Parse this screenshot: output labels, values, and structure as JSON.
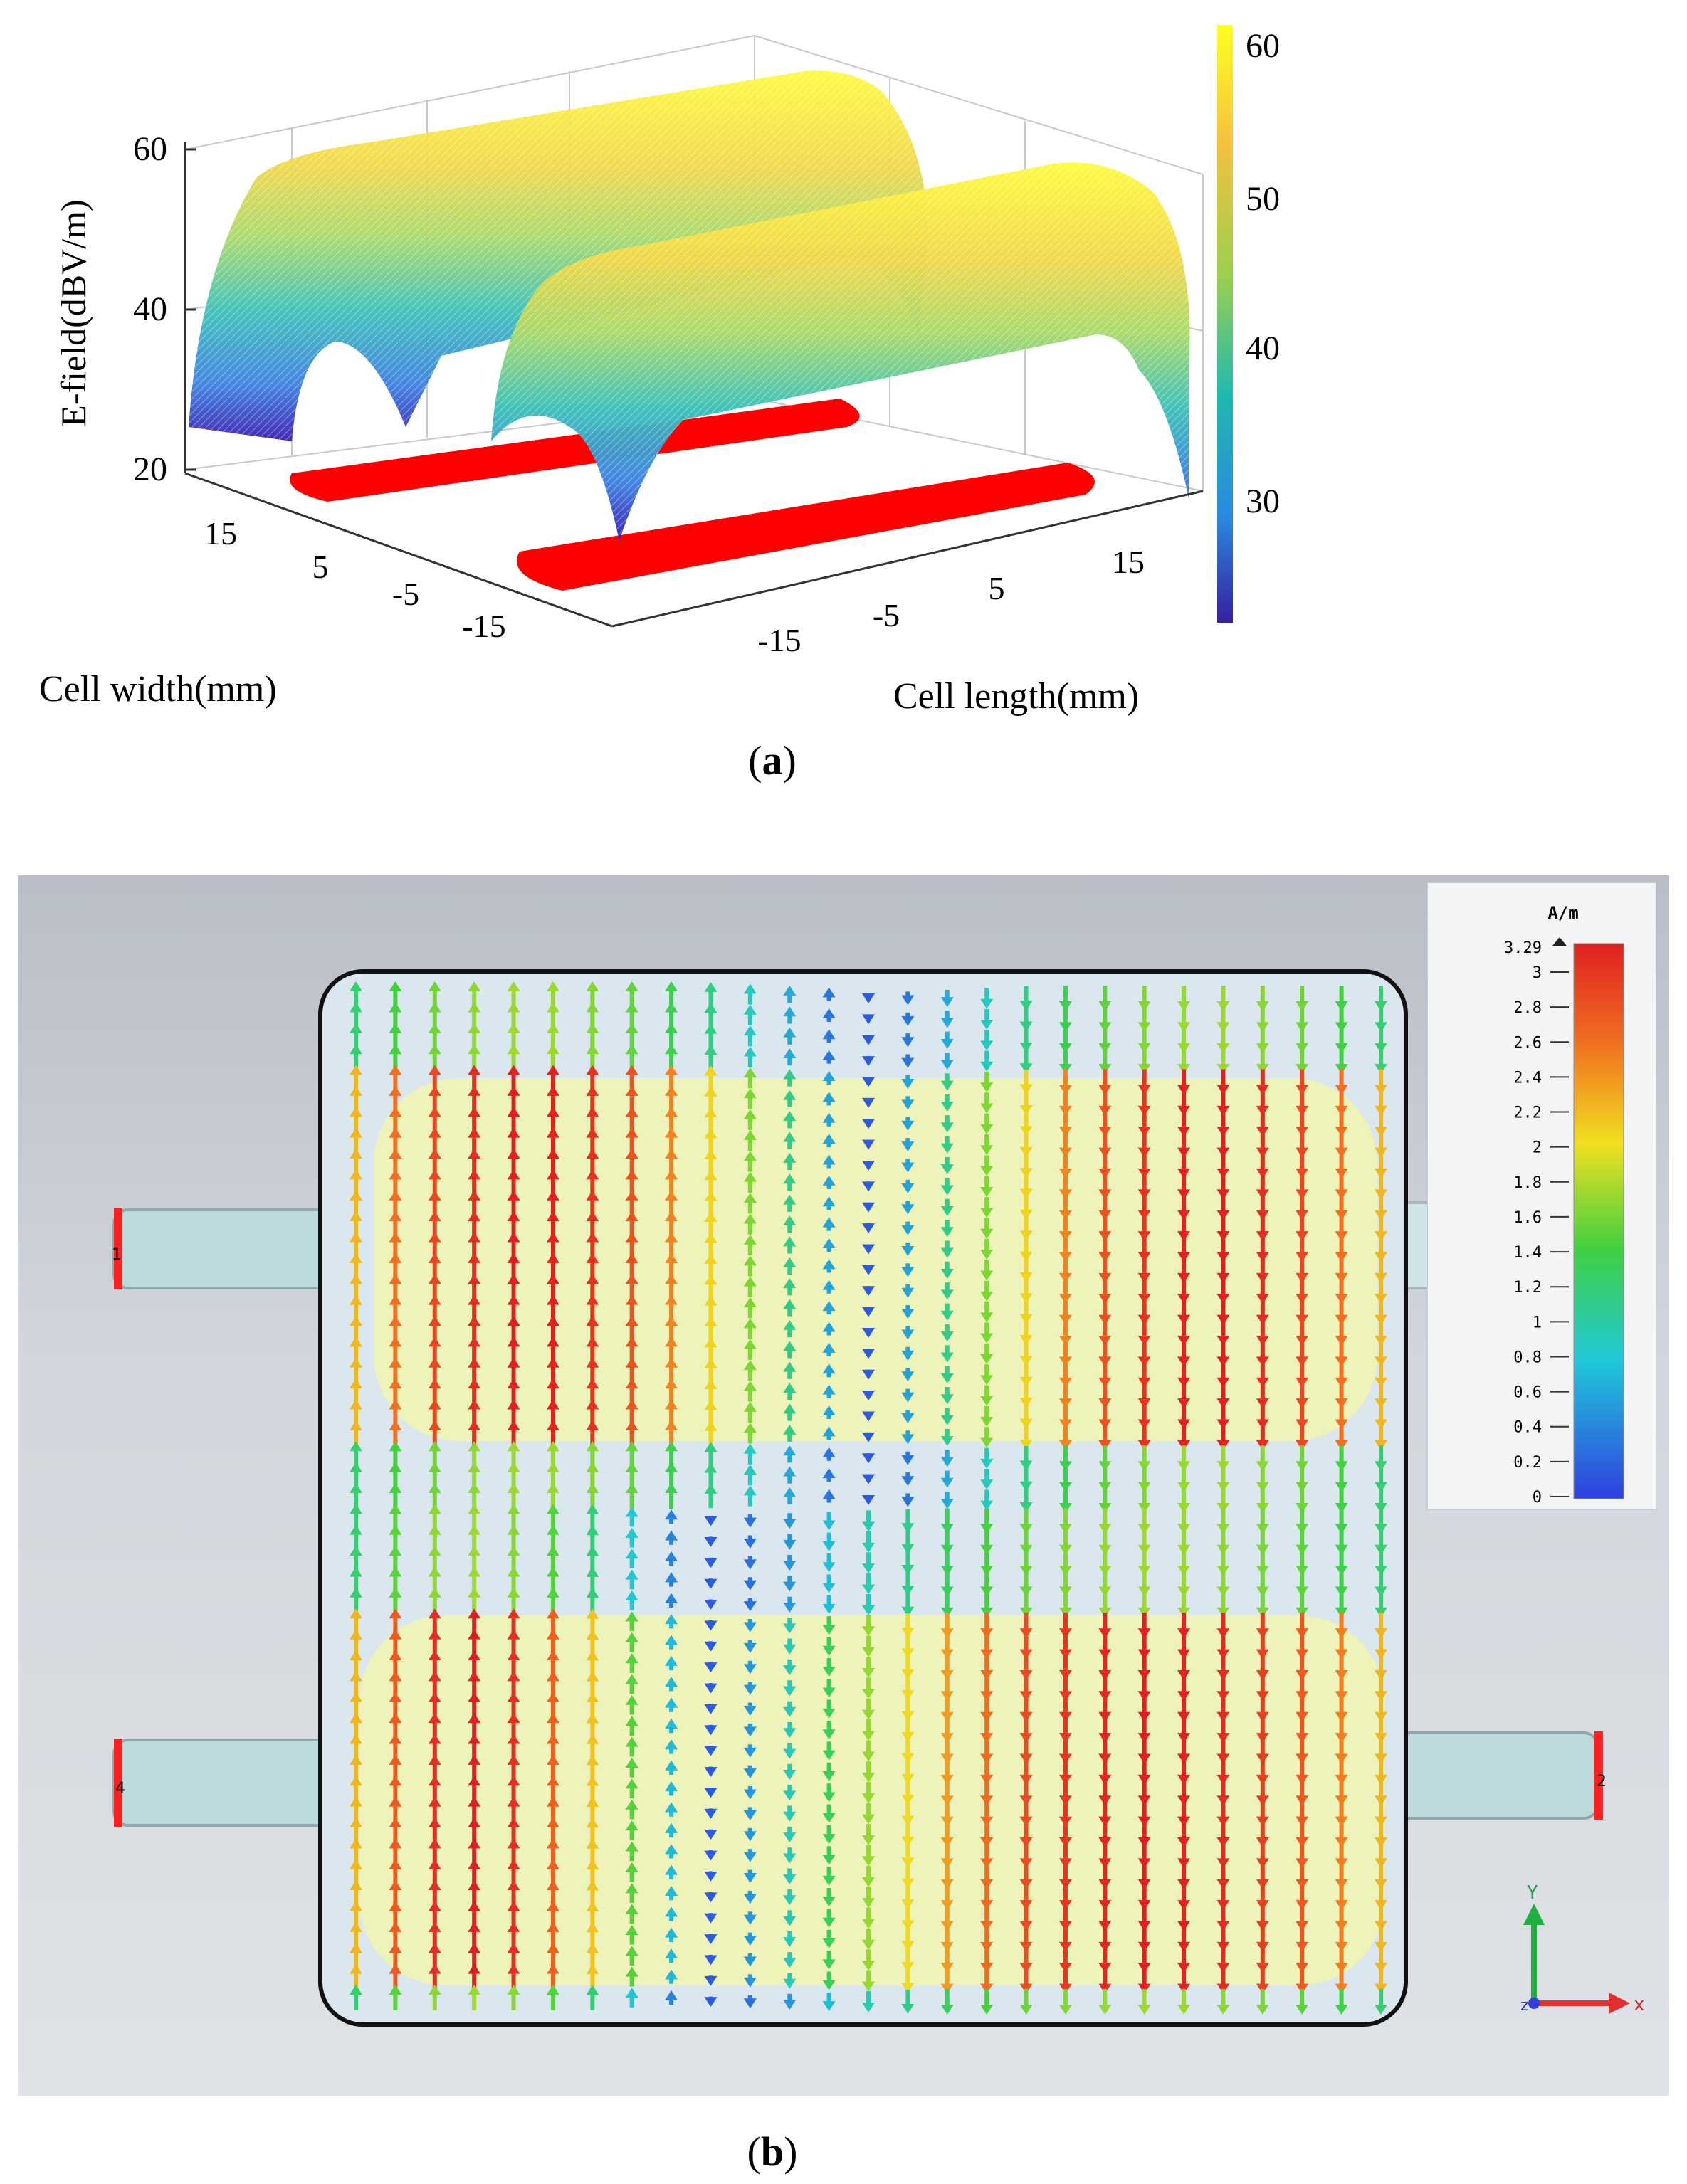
{
  "panel_a": {
    "label_open": "(",
    "label_letter": "a",
    "label_close": ")",
    "z_label": "E-field(dBV/m)",
    "x_label": "Cell width(mm)",
    "y_label": "Cell length(mm)",
    "z_ticks": [
      "20",
      "40",
      "60"
    ],
    "width_ticks": [
      "15",
      "5",
      "-5",
      "-15"
    ],
    "length_ticks": [
      "-15",
      "-5",
      "5",
      "15"
    ],
    "colorbar_ticks": [
      "60",
      "50",
      "40",
      "30"
    ],
    "colors": {
      "pad": "#ff0000",
      "high": "#ffff00",
      "low": "#3b1fb0"
    }
  },
  "panel_b": {
    "label_open": "(",
    "label_letter": "b",
    "label_close": ")",
    "unit": "A/m",
    "max_value": "3.29",
    "scale_ticks": [
      "3",
      "2.8",
      "2.6",
      "2.4",
      "2.2",
      "2",
      "1.8",
      "1.6",
      "1.4",
      "1.2",
      "1",
      "0.8",
      "0.6",
      "0.4",
      "0.2",
      "0"
    ],
    "port_labels": [
      "1",
      "4",
      "2"
    ],
    "axis_y": "Y",
    "axis_x": "x",
    "axis_z": "z",
    "colors": {
      "max": "#e02020",
      "mid": "#f0e020",
      "min": "#2040e0"
    }
  },
  "chart_data": {
    "type": "surface",
    "title": "",
    "xlabel": "Cell width(mm)",
    "ylabel": "Cell length(mm)",
    "zlabel": "E-field(dBV/m)",
    "zlim": [
      20,
      60
    ],
    "colorbar_range": [
      22,
      62
    ],
    "peak_value_approx": 60
  }
}
